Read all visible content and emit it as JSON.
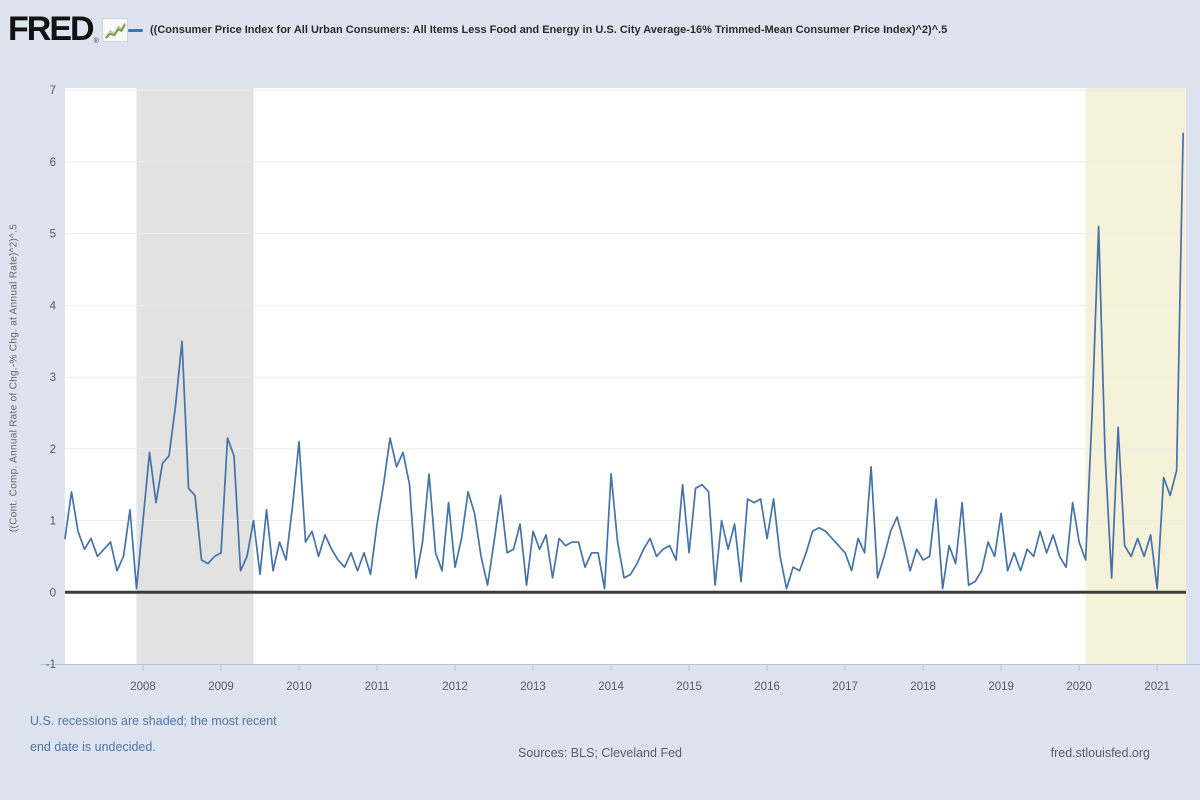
{
  "header": {
    "logo_text": "FRED",
    "logo_reg": "®",
    "series_title": "((Consumer Price Index for All Urban Consumers: All Items Less Food and Energy in U.S. City Average-16% Trimmed-Mean Consumer Price Index)^2)^.5"
  },
  "footer": {
    "recession_note_line1": "U.S. recessions are shaded; the most recent",
    "recession_note_line2": "end date is undecided.",
    "sources": "Sources: BLS; Cleveland Fed",
    "site": "fred.stlouisfed.org"
  },
  "chart_data": {
    "type": "line",
    "title": "((Consumer Price Index for All Urban Consumers: All Items Less Food and Energy in U.S. City Average-16% Trimmed-Mean Consumer Price Index)^2)^.5",
    "xlabel": "",
    "ylabel": "((Cont. Comp. Annual Rate of Chg.-% Chg. at Annual Rate)^2)^.5",
    "frequency": "monthly",
    "start": "2007-01",
    "end": "2021-05",
    "x_start_year": 2007,
    "x_range": [
      2007,
      2021.37
    ],
    "y_range": [
      -1,
      7.03
    ],
    "x_ticks": [
      2008,
      2009,
      2010,
      2011,
      2012,
      2013,
      2014,
      2015,
      2016,
      2017,
      2018,
      2019,
      2020,
      2021
    ],
    "y_ticks": [
      -1,
      0,
      1,
      2,
      3,
      4,
      5,
      6,
      7
    ],
    "grid": true,
    "legend_position": "top",
    "recession_bands": [
      {
        "from": 2007.917,
        "to": 2009.417,
        "label": "recession-2008",
        "color": "#e2e2e2"
      },
      {
        "from": 2020.083,
        "to": 2021.37,
        "label": "recession-2020-ongoing",
        "color": "#f6f2da"
      }
    ],
    "values": [
      0.75,
      1.4,
      0.85,
      0.6,
      0.75,
      0.5,
      0.6,
      0.7,
      0.3,
      0.5,
      1.15,
      0.05,
      1.0,
      1.95,
      1.25,
      1.8,
      1.9,
      2.6,
      3.5,
      1.45,
      1.35,
      0.45,
      0.4,
      0.5,
      0.55,
      2.15,
      1.9,
      0.3,
      0.5,
      1.0,
      0.25,
      1.15,
      0.3,
      0.7,
      0.45,
      1.2,
      2.1,
      0.7,
      0.85,
      0.5,
      0.8,
      0.6,
      0.45,
      0.35,
      0.55,
      0.3,
      0.55,
      0.25,
      0.95,
      1.5,
      2.15,
      1.75,
      1.95,
      1.5,
      0.2,
      0.7,
      1.65,
      0.55,
      0.3,
      1.25,
      0.35,
      0.75,
      1.4,
      1.1,
      0.5,
      0.1,
      0.7,
      1.35,
      0.55,
      0.6,
      0.95,
      0.1,
      0.85,
      0.6,
      0.8,
      0.2,
      0.75,
      0.65,
      0.7,
      0.7,
      0.35,
      0.55,
      0.55,
      0.05,
      1.65,
      0.7,
      0.2,
      0.25,
      0.4,
      0.6,
      0.75,
      0.5,
      0.6,
      0.65,
      0.45,
      1.5,
      0.55,
      1.45,
      1.5,
      1.4,
      0.1,
      1.0,
      0.6,
      0.95,
      0.15,
      1.3,
      1.25,
      1.3,
      0.75,
      1.3,
      0.5,
      0.05,
      0.35,
      0.3,
      0.55,
      0.85,
      0.9,
      0.85,
      0.75,
      0.65,
      0.55,
      0.3,
      0.75,
      0.55,
      1.75,
      0.2,
      0.5,
      0.85,
      1.05,
      0.7,
      0.3,
      0.6,
      0.45,
      0.5,
      1.3,
      0.05,
      0.65,
      0.4,
      1.25,
      0.1,
      0.15,
      0.3,
      0.7,
      0.5,
      1.1,
      0.3,
      0.55,
      0.3,
      0.6,
      0.5,
      0.85,
      0.55,
      0.8,
      0.5,
      0.35,
      1.25,
      0.7,
      0.45,
      2.5,
      5.1,
      1.9,
      0.2,
      2.3,
      0.65,
      0.5,
      0.75,
      0.5,
      0.8,
      0.05,
      1.6,
      1.35,
      1.7,
      6.4
    ],
    "colors": {
      "line": "#4572a7",
      "zero_line": "#3d3d3d",
      "grid": "#ececec",
      "plot_bg": "#ffffff",
      "page_bg": "#dde4ef",
      "tick_text": "#555b63",
      "axis_line": "#b9c4d8",
      "spark_green": "#6f9e3f",
      "spark_gray": "#b9c7b0"
    }
  }
}
